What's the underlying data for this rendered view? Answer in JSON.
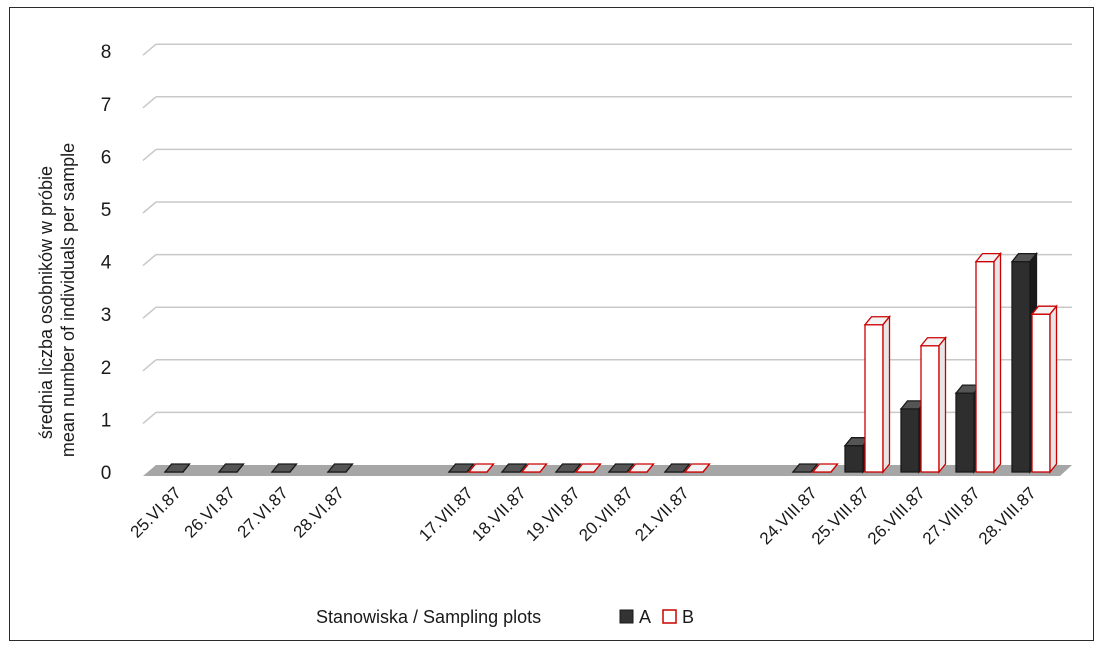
{
  "chart_data": {
    "type": "bar",
    "title": "",
    "ylabel_lines": [
      "średnia liczba osobników w próbie",
      "mean number of individuals per sample"
    ],
    "xlabel": "",
    "ylim": [
      0,
      8
    ],
    "yticks": [
      "0",
      "1",
      "2",
      "3",
      "4",
      "5",
      "6",
      "7",
      "8"
    ],
    "categories": [
      "25.VI.87",
      "26.VI.87",
      "27.VI.87",
      "28.VI.87",
      "17.VII.87",
      "18.VII.87",
      "19.VII.87",
      "20.VII.87",
      "21.VII.87",
      "24.VIII.87",
      "25.VIII.87",
      "26.VIII.87",
      "27.VIII.87",
      "28.VIII.87"
    ],
    "series": [
      {
        "name": "A",
        "color": "#333333",
        "values": [
          0,
          0,
          0,
          0,
          0,
          0,
          0,
          0,
          0,
          0,
          0.5,
          1.2,
          1.5,
          4.0
        ]
      },
      {
        "name": "B",
        "color": "#cc0000",
        "values": [
          null,
          null,
          null,
          null,
          0,
          0,
          0,
          0,
          0,
          0,
          2.8,
          2.4,
          4.0,
          3.0
        ]
      }
    ],
    "grid": true,
    "legend": {
      "title": "Stanowiska / Sampling plots",
      "position": "bottom"
    }
  }
}
